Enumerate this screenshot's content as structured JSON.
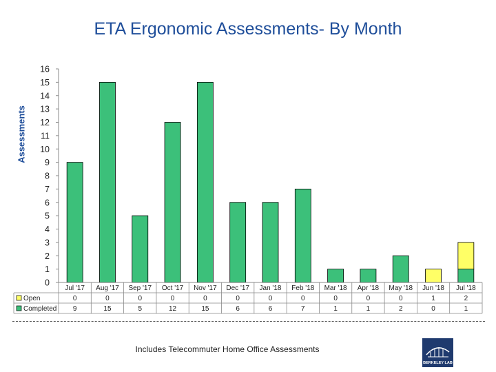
{
  "chart_data": {
    "type": "bar",
    "stacked": true,
    "title": "ETA Ergonomic Assessments- By Month",
    "ylabel": "Assessments",
    "xlabel": "",
    "ylim": [
      0,
      16
    ],
    "yticks": [
      0,
      1,
      2,
      3,
      4,
      5,
      6,
      7,
      8,
      9,
      10,
      11,
      12,
      13,
      14,
      15,
      16
    ],
    "categories": [
      "Jul '17",
      "Aug '17",
      "Sep '17",
      "Oct '17",
      "Nov '17",
      "Dec '17",
      "Jan '18",
      "Feb '18",
      "Mar '18",
      "Apr '18",
      "May '18",
      "Jun '18",
      "Jul '18"
    ],
    "series": [
      {
        "name": "Open",
        "color": "#ffff66",
        "values": [
          0,
          0,
          0,
          0,
          0,
          0,
          0,
          0,
          0,
          0,
          0,
          1,
          2
        ]
      },
      {
        "name": "Completed",
        "color": "#3cc07a",
        "values": [
          9,
          15,
          5,
          12,
          15,
          6,
          6,
          7,
          1,
          1,
          2,
          0,
          1
        ]
      }
    ],
    "legend": "data-table-left",
    "data_table": true
  },
  "footnote": "Includes Telecommuter Home Office Assessments",
  "logo": {
    "text": "BERKELEY LAB",
    "color": "#1f3a6e"
  }
}
